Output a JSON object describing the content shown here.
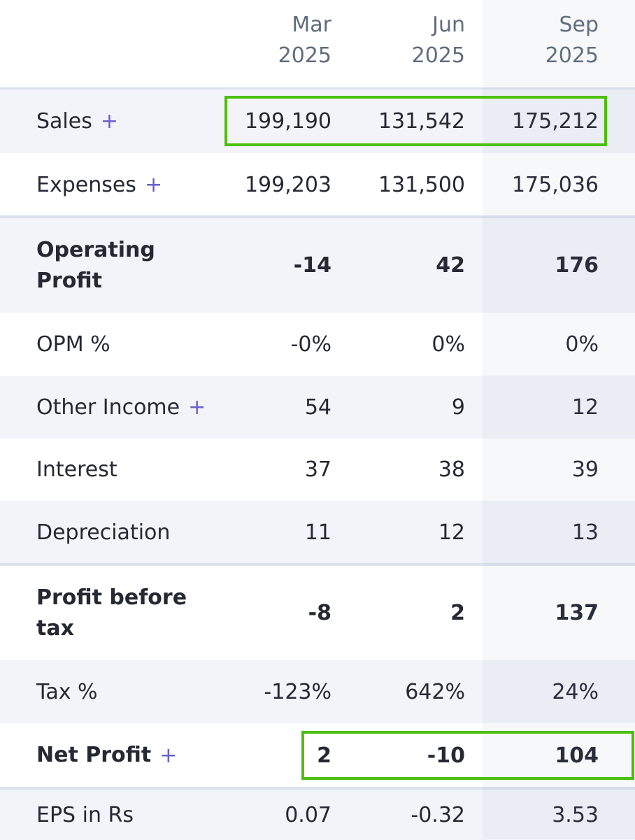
{
  "columns": [
    "Mar 2025",
    "Jun 2025",
    "Sep 2025"
  ],
  "rows": [
    {
      "label": "Sales",
      "plus": "+",
      "values": [
        "199,190",
        "131,542",
        "175,212"
      ]
    },
    {
      "label": "Expenses",
      "plus": "+",
      "values": [
        "199,203",
        "131,500",
        "175,036"
      ]
    },
    {
      "label": "Operating Profit",
      "bold": true,
      "values": [
        "-14",
        "42",
        "176"
      ]
    },
    {
      "label": "OPM %",
      "values": [
        "-0%",
        "0%",
        "0%"
      ]
    },
    {
      "label": "Other Income",
      "plus": "+",
      "values": [
        "54",
        "9",
        "12"
      ]
    },
    {
      "label": "Interest",
      "values": [
        "37",
        "38",
        "39"
      ]
    },
    {
      "label": "Depreciation",
      "values": [
        "11",
        "12",
        "13"
      ]
    },
    {
      "label": "Profit before tax",
      "bold": true,
      "values": [
        "-8",
        "2",
        "137"
      ]
    },
    {
      "label": "Tax %",
      "values": [
        "-123%",
        "642%",
        "24%"
      ]
    },
    {
      "label": "Net Profit",
      "plus": "+",
      "bold": true,
      "values": [
        "2",
        "-10",
        "104"
      ]
    },
    {
      "label": "EPS in Rs",
      "values": [
        "0.07",
        "-0.32",
        "3.53"
      ]
    }
  ]
}
